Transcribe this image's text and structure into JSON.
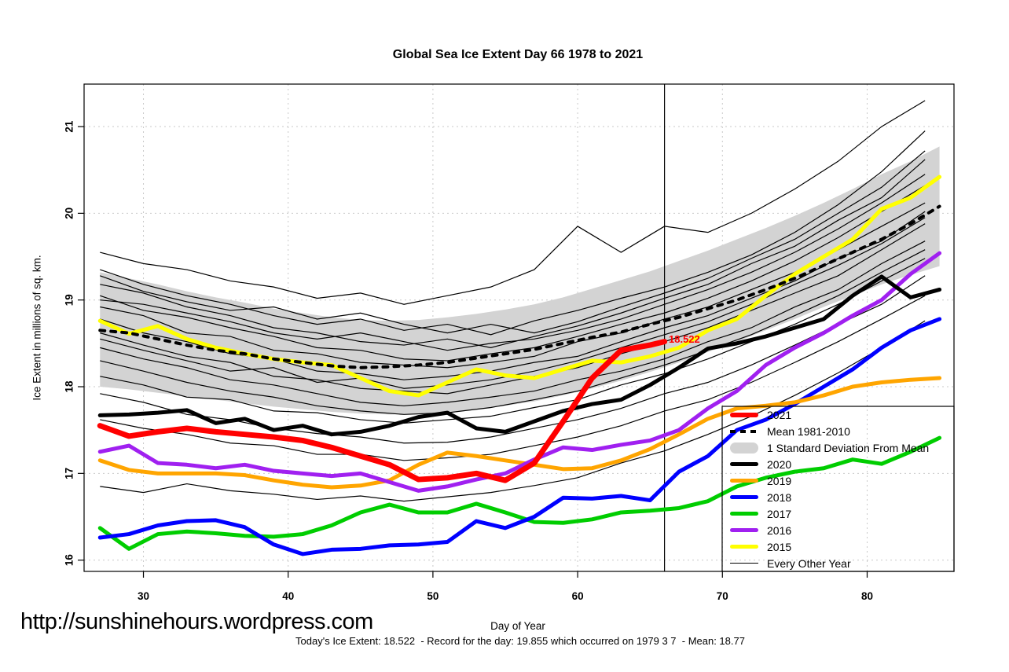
{
  "watermark": "http://sunshinehours.wordpress.com",
  "footer": "Today's Ice Extent: 18.522  - Record for the day: 19.855 which occurred on 1979 3 7  - Mean: 18.77",
  "annotation": {
    "text": "18.522",
    "day": 66,
    "value": 18.522,
    "color": "#FF0000"
  },
  "legend": {
    "items": [
      {
        "label": "2021",
        "color": "#FF0000",
        "style": "line",
        "thickness": 6
      },
      {
        "label": "Mean 1981-2010",
        "color": "#000000",
        "style": "dashed",
        "thickness": 4
      },
      {
        "label": "1 Standard Deviation From Mean",
        "color": "#D3D3D3",
        "style": "band",
        "thickness": 14
      },
      {
        "label": "2020",
        "color": "#000000",
        "style": "line",
        "thickness": 5
      },
      {
        "label": "2019",
        "color": "#FFA500",
        "style": "line",
        "thickness": 5
      },
      {
        "label": "2018",
        "color": "#0000FF",
        "style": "line",
        "thickness": 5
      },
      {
        "label": "2017",
        "color": "#00CD00",
        "style": "line",
        "thickness": 5
      },
      {
        "label": "2016",
        "color": "#A020F0",
        "style": "line",
        "thickness": 5
      },
      {
        "label": "2015",
        "color": "#FFFF00",
        "style": "line",
        "thickness": 5
      },
      {
        "label": "Every Other Year",
        "color": "#000000",
        "style": "line",
        "thickness": 1
      }
    ]
  },
  "chart_data": {
    "type": "line",
    "title": "Global Sea Ice Extent Day 66 1978 to 2021",
    "xlabel": "Day of Year",
    "ylabel": "Ice Extent in millions of sq. km.",
    "xlim": [
      25.9,
      86.0
    ],
    "ylim": [
      15.87,
      21.49
    ],
    "xticks": [
      30,
      40,
      50,
      60,
      70,
      80
    ],
    "yticks": [
      16,
      17,
      18,
      19,
      20,
      21
    ],
    "grid": true,
    "marker_day": 66,
    "band": {
      "name": "1 Standard Deviation From Mean",
      "color": "#D3D3D3",
      "days": [
        27,
        29,
        31,
        33,
        35,
        37,
        39,
        41,
        43,
        45,
        47,
        49,
        51,
        53,
        55,
        57,
        59,
        61,
        63,
        65,
        67,
        69,
        71,
        73,
        75,
        77,
        79,
        81,
        83,
        85
      ],
      "upper": [
        19.32,
        19.25,
        19.18,
        19.1,
        19.03,
        18.97,
        18.9,
        18.85,
        18.8,
        18.77,
        18.76,
        18.77,
        18.8,
        18.84,
        18.89,
        18.95,
        19.03,
        19.13,
        19.23,
        19.33,
        19.45,
        19.57,
        19.7,
        19.83,
        19.97,
        20.12,
        20.28,
        20.45,
        20.6,
        20.77
      ],
      "lower": [
        18.0,
        17.97,
        17.93,
        17.89,
        17.85,
        17.81,
        17.77,
        17.74,
        17.71,
        17.69,
        17.68,
        17.69,
        17.71,
        17.74,
        17.78,
        17.83,
        17.9,
        17.98,
        18.07,
        18.17,
        18.28,
        18.4,
        18.52,
        18.65,
        18.78,
        18.92,
        19.05,
        19.18,
        19.29,
        19.39
      ]
    },
    "series": [
      {
        "name": "2015",
        "color": "#FFFF00",
        "width": 5,
        "days": [
          27,
          29,
          31,
          33,
          35,
          37,
          39,
          41,
          43,
          45,
          47,
          49,
          51,
          53,
          55,
          57,
          59,
          61,
          63,
          65,
          67,
          69,
          71,
          73,
          75,
          77,
          79,
          81,
          83,
          85
        ],
        "values": [
          18.76,
          18.61,
          18.7,
          18.55,
          18.45,
          18.38,
          18.32,
          18.28,
          18.25,
          18.1,
          17.95,
          17.9,
          18.05,
          18.2,
          18.13,
          18.1,
          18.2,
          18.3,
          18.28,
          18.35,
          18.45,
          18.65,
          18.78,
          19.05,
          19.3,
          19.5,
          19.7,
          20.05,
          20.18,
          20.42
        ]
      },
      {
        "name": "Mean 1981-2010",
        "color": "#000000",
        "width": 4,
        "dash": "6 8",
        "days": [
          27,
          29,
          31,
          33,
          35,
          37,
          39,
          41,
          43,
          45,
          47,
          49,
          51,
          53,
          55,
          57,
          59,
          61,
          63,
          65,
          67,
          69,
          71,
          73,
          75,
          77,
          79,
          81,
          83,
          85
        ],
        "values": [
          18.65,
          18.62,
          18.55,
          18.48,
          18.42,
          18.38,
          18.32,
          18.28,
          18.24,
          18.22,
          18.23,
          18.25,
          18.28,
          18.33,
          18.38,
          18.43,
          18.5,
          18.57,
          18.63,
          18.72,
          18.8,
          18.9,
          19.0,
          19.12,
          19.25,
          19.4,
          19.55,
          19.7,
          19.88,
          20.08
        ]
      },
      {
        "name": "2017",
        "color": "#00CD00",
        "width": 5,
        "days": [
          27,
          29,
          31,
          33,
          35,
          37,
          39,
          41,
          43,
          45,
          47,
          49,
          51,
          53,
          55,
          57,
          59,
          61,
          63,
          65,
          67,
          69,
          71,
          73,
          75,
          77,
          79,
          81,
          83,
          85
        ],
        "values": [
          16.37,
          16.13,
          16.3,
          16.33,
          16.31,
          16.28,
          16.27,
          16.3,
          16.4,
          16.55,
          16.64,
          16.55,
          16.55,
          16.65,
          16.55,
          16.44,
          16.43,
          16.47,
          16.55,
          16.57,
          16.6,
          16.68,
          16.85,
          16.95,
          17.02,
          17.06,
          17.16,
          17.11,
          17.25,
          17.41
        ]
      },
      {
        "name": "2018",
        "color": "#0000FF",
        "width": 5,
        "days": [
          27,
          29,
          31,
          33,
          35,
          37,
          39,
          41,
          43,
          45,
          47,
          49,
          51,
          53,
          55,
          57,
          59,
          61,
          63,
          65,
          67,
          69,
          71,
          73,
          75,
          77,
          79,
          81,
          83,
          85
        ],
        "values": [
          16.26,
          16.3,
          16.4,
          16.45,
          16.46,
          16.38,
          16.18,
          16.07,
          16.12,
          16.13,
          16.17,
          16.18,
          16.21,
          16.45,
          16.37,
          16.5,
          16.72,
          16.71,
          16.74,
          16.69,
          17.02,
          17.2,
          17.5,
          17.62,
          17.8,
          18.0,
          18.2,
          18.45,
          18.65,
          18.78
        ]
      },
      {
        "name": "2019",
        "color": "#FFA500",
        "width": 5,
        "days": [
          27,
          29,
          31,
          33,
          35,
          37,
          39,
          41,
          43,
          45,
          47,
          49,
          51,
          53,
          55,
          57,
          59,
          61,
          63,
          65,
          67,
          69,
          71,
          73,
          75,
          77,
          79,
          81,
          83,
          85
        ],
        "values": [
          17.15,
          17.04,
          17.0,
          17.0,
          17.0,
          16.98,
          16.92,
          16.87,
          16.84,
          16.86,
          16.92,
          17.1,
          17.24,
          17.2,
          17.15,
          17.1,
          17.05,
          17.06,
          17.15,
          17.28,
          17.45,
          17.63,
          17.75,
          17.78,
          17.82,
          17.9,
          18.0,
          18.05,
          18.08,
          18.1
        ]
      },
      {
        "name": "2016",
        "color": "#A020F0",
        "width": 5,
        "days": [
          27,
          29,
          31,
          33,
          35,
          37,
          39,
          41,
          43,
          45,
          47,
          49,
          51,
          53,
          55,
          57,
          59,
          61,
          63,
          65,
          67,
          69,
          71,
          73,
          75,
          77,
          79,
          81,
          83,
          85
        ],
        "values": [
          17.25,
          17.32,
          17.12,
          17.1,
          17.06,
          17.1,
          17.03,
          17.0,
          16.97,
          17.0,
          16.9,
          16.8,
          16.85,
          16.93,
          17.0,
          17.16,
          17.3,
          17.27,
          17.33,
          17.38,
          17.5,
          17.75,
          17.95,
          18.25,
          18.45,
          18.62,
          18.82,
          19.0,
          19.3,
          19.54
        ]
      },
      {
        "name": "2020",
        "color": "#000000",
        "width": 5,
        "days": [
          27,
          29,
          31,
          33,
          35,
          37,
          39,
          41,
          43,
          45,
          47,
          49,
          51,
          53,
          55,
          57,
          59,
          61,
          63,
          65,
          67,
          69,
          71,
          73,
          75,
          77,
          79,
          81,
          83,
          85
        ],
        "values": [
          17.67,
          17.68,
          17.7,
          17.73,
          17.58,
          17.63,
          17.5,
          17.55,
          17.45,
          17.48,
          17.55,
          17.65,
          17.7,
          17.52,
          17.48,
          17.6,
          17.72,
          17.8,
          17.85,
          18.02,
          18.22,
          18.44,
          18.5,
          18.58,
          18.68,
          18.78,
          19.05,
          19.27,
          19.03,
          19.12
        ]
      },
      {
        "name": "2021",
        "color": "#FF0000",
        "width": 7,
        "days": [
          27,
          29,
          31,
          33,
          35,
          37,
          39,
          41,
          43,
          45,
          47,
          49,
          51,
          53,
          55,
          57,
          59,
          61,
          63,
          65,
          66
        ],
        "values": [
          17.55,
          17.43,
          17.48,
          17.52,
          17.48,
          17.45,
          17.42,
          17.38,
          17.3,
          17.2,
          17.1,
          16.93,
          16.95,
          17.0,
          16.92,
          17.12,
          17.6,
          18.1,
          18.42,
          18.48,
          18.52
        ]
      }
    ],
    "every_other_year": {
      "name": "Every Other Year",
      "color": "#000000",
      "width": 1.2,
      "days": [
        27,
        30,
        33,
        36,
        39,
        42,
        45,
        48,
        51,
        54,
        57,
        60,
        63,
        66,
        69,
        72,
        75,
        78,
        81,
        84
      ],
      "series": [
        [
          19.55,
          19.42,
          19.35,
          19.22,
          19.15,
          19.02,
          19.08,
          18.95,
          19.05,
          19.15,
          19.35,
          19.85,
          19.55,
          19.85,
          19.78,
          20.0,
          20.28,
          20.6,
          21.0,
          21.3
        ],
        [
          19.35,
          19.18,
          19.05,
          18.95,
          18.82,
          18.72,
          18.78,
          18.65,
          18.72,
          18.6,
          18.76,
          18.88,
          19.02,
          19.15,
          19.32,
          19.52,
          19.78,
          20.1,
          20.48,
          20.95
        ],
        [
          19.28,
          19.1,
          18.98,
          18.88,
          18.92,
          18.78,
          18.85,
          18.72,
          18.62,
          18.72,
          18.62,
          18.75,
          18.92,
          19.08,
          19.25,
          19.48,
          19.7,
          20.0,
          20.3,
          20.72
        ],
        [
          19.18,
          19.08,
          18.92,
          18.82,
          18.68,
          18.62,
          18.52,
          18.48,
          18.55,
          18.45,
          18.58,
          18.7,
          18.85,
          19.02,
          19.18,
          19.42,
          19.62,
          19.92,
          20.18,
          20.62
        ],
        [
          19.05,
          18.88,
          18.8,
          18.68,
          18.58,
          18.45,
          18.42,
          18.32,
          18.3,
          18.38,
          18.45,
          18.58,
          18.72,
          18.85,
          19.02,
          19.22,
          19.45,
          19.72,
          20.02,
          20.32
        ],
        [
          19.0,
          18.95,
          18.85,
          18.75,
          18.62,
          18.55,
          18.62,
          18.52,
          18.42,
          18.5,
          18.55,
          18.65,
          18.78,
          18.95,
          19.12,
          19.32,
          19.55,
          19.82,
          20.12,
          20.45
        ],
        [
          18.92,
          18.82,
          18.62,
          18.58,
          18.42,
          18.38,
          18.28,
          18.25,
          18.22,
          18.28,
          18.35,
          18.52,
          18.62,
          18.78,
          18.92,
          19.12,
          19.32,
          19.58,
          19.85,
          20.12
        ],
        [
          18.78,
          18.62,
          18.52,
          18.38,
          18.32,
          18.18,
          18.15,
          18.08,
          18.12,
          18.18,
          18.28,
          18.35,
          18.52,
          18.68,
          18.82,
          19.02,
          19.22,
          19.48,
          19.68,
          20.02
        ],
        [
          18.62,
          18.48,
          18.35,
          18.28,
          18.12,
          18.08,
          17.98,
          17.95,
          17.92,
          18.02,
          18.12,
          18.22,
          18.38,
          18.52,
          18.68,
          18.88,
          19.08,
          19.28,
          19.58,
          19.88
        ],
        [
          18.55,
          18.42,
          18.3,
          18.18,
          18.22,
          18.05,
          18.1,
          17.98,
          18.02,
          18.08,
          18.18,
          18.3,
          18.45,
          18.6,
          18.75,
          18.95,
          19.18,
          19.4,
          19.65,
          19.95
        ],
        [
          18.45,
          18.32,
          18.22,
          18.08,
          18.02,
          17.92,
          17.82,
          17.78,
          17.82,
          17.88,
          17.95,
          18.08,
          18.18,
          18.32,
          18.52,
          18.68,
          18.92,
          19.12,
          19.42,
          19.68
        ],
        [
          18.3,
          18.18,
          18.05,
          17.95,
          17.88,
          17.78,
          17.72,
          17.68,
          17.7,
          17.76,
          17.85,
          17.95,
          18.1,
          18.25,
          18.42,
          18.6,
          18.82,
          19.05,
          19.32,
          19.58
        ],
        [
          18.12,
          18.02,
          17.88,
          17.85,
          17.72,
          17.7,
          17.62,
          17.58,
          17.62,
          17.66,
          17.76,
          17.85,
          18.02,
          18.15,
          18.32,
          18.52,
          18.72,
          18.95,
          19.22,
          19.48
        ],
        [
          17.92,
          17.82,
          17.68,
          17.62,
          17.52,
          17.46,
          17.42,
          17.35,
          17.36,
          17.42,
          17.52,
          17.62,
          17.75,
          17.92,
          18.05,
          18.25,
          18.48,
          18.72,
          18.95,
          19.28
        ],
        [
          17.62,
          17.52,
          17.45,
          17.35,
          17.32,
          17.22,
          17.22,
          17.15,
          17.18,
          17.22,
          17.32,
          17.42,
          17.55,
          17.72,
          17.85,
          18.05,
          18.28,
          18.52,
          18.78,
          19.05
        ],
        [
          16.85,
          16.78,
          16.88,
          16.8,
          16.76,
          16.7,
          16.74,
          16.68,
          16.73,
          16.78,
          16.86,
          16.95,
          17.12,
          17.26,
          17.45,
          17.66,
          17.9,
          18.16,
          18.45,
          18.76
        ]
      ]
    }
  }
}
